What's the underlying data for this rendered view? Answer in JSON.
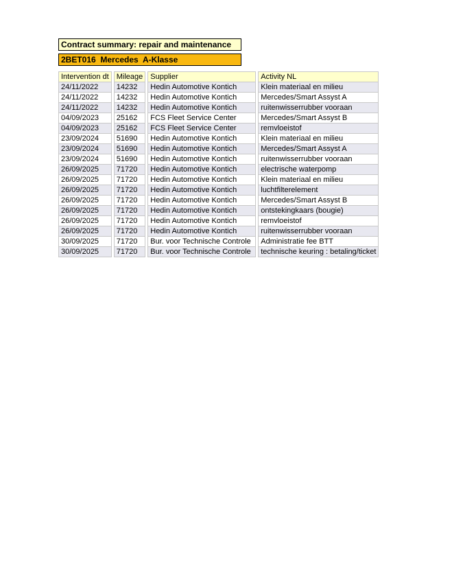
{
  "header": {
    "title": "Contract summary: repair and maintenance",
    "vehicle": "2BET016  Mercedes  A-Klasse"
  },
  "colors": {
    "page_bg": "#FFFFFF",
    "title_box_bg": "#FFFFCC",
    "vehicle_box_bg": "#F9B810",
    "box_border": "#000000",
    "table_header_bg": "#FFFFCC",
    "row_odd_bg": "#E8E8F0",
    "row_even_bg": "#FFFFFF",
    "cell_border": "#C8C8C8",
    "text": "#000000"
  },
  "table": {
    "columns": [
      "Intervention dt",
      "Mileage",
      "Supplier",
      "Activity NL"
    ],
    "rows": [
      [
        "24/11/2022",
        "14232",
        "Hedin Automotive Kontich",
        "Klein materiaal en milieu"
      ],
      [
        "24/11/2022",
        "14232",
        "Hedin Automotive Kontich",
        "Mercedes/Smart Assyst A"
      ],
      [
        "24/11/2022",
        "14232",
        "Hedin Automotive Kontich",
        "ruitenwisserrubber vooraan"
      ],
      [
        "04/09/2023",
        "25162",
        "FCS Fleet Service Center",
        "Mercedes/Smart Assyst B"
      ],
      [
        "04/09/2023",
        "25162",
        "FCS Fleet Service Center",
        "remvloeistof"
      ],
      [
        "23/09/2024",
        "51690",
        "Hedin Automotive Kontich",
        "Klein materiaal en milieu"
      ],
      [
        "23/09/2024",
        "51690",
        "Hedin Automotive Kontich",
        "Mercedes/Smart Assyst A"
      ],
      [
        "23/09/2024",
        "51690",
        "Hedin Automotive Kontich",
        "ruitenwisserrubber vooraan"
      ],
      [
        "26/09/2025",
        "71720",
        "Hedin Automotive Kontich",
        "electrische waterpomp"
      ],
      [
        "26/09/2025",
        "71720",
        "Hedin Automotive Kontich",
        "Klein materiaal en milieu"
      ],
      [
        "26/09/2025",
        "71720",
        "Hedin Automotive Kontich",
        "luchtfilterelement"
      ],
      [
        "26/09/2025",
        "71720",
        "Hedin Automotive Kontich",
        "Mercedes/Smart Assyst B"
      ],
      [
        "26/09/2025",
        "71720",
        "Hedin Automotive Kontich",
        "ontstekingkaars (bougie)"
      ],
      [
        "26/09/2025",
        "71720",
        "Hedin Automotive Kontich",
        "remvloeistof"
      ],
      [
        "26/09/2025",
        "71720",
        "Hedin Automotive Kontich",
        "ruitenwisserrubber vooraan"
      ],
      [
        "30/09/2025",
        "71720",
        "Bur. voor Technische Controle",
        "Administratie fee BTT"
      ],
      [
        "30/09/2025",
        "71720",
        "Bur. voor Technische Controle",
        "technische keuring : betaling/ticket"
      ]
    ]
  }
}
